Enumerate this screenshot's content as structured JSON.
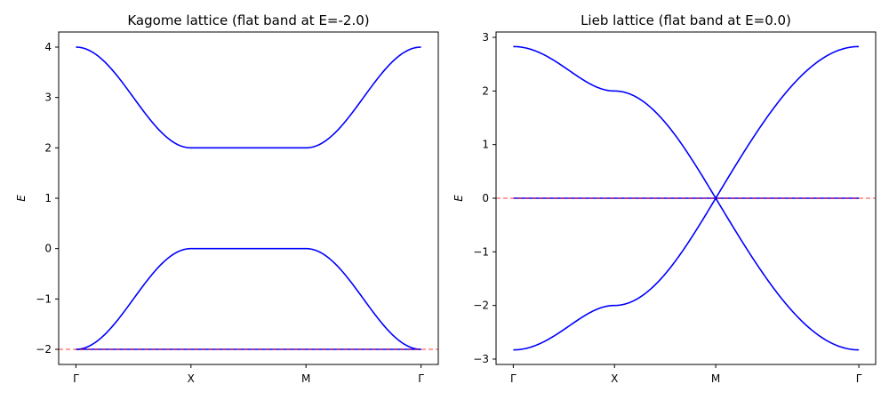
{
  "chart_data": [
    {
      "type": "line",
      "title": "Kagome lattice (flat band at E=-2.0)",
      "xlabel": "",
      "ylabel": "E",
      "x_tick_labels": [
        "Γ",
        "X",
        "M",
        "Γ"
      ],
      "x_ticks": [
        0,
        1,
        2,
        3
      ],
      "xlim": [
        -0.15,
        3.15
      ],
      "ylim": [
        -2.3,
        4.3
      ],
      "y_ticks": [
        -2,
        -1,
        0,
        1,
        2,
        3,
        4
      ],
      "y_tick_labels": [
        "−2",
        "−1",
        "0",
        "1",
        "2",
        "3",
        "4"
      ],
      "flat_band_energy": -2.0,
      "flat_band_line_color": "#ff0000",
      "band_color": "#0000ff",
      "series": [
        {
          "x": [
            0,
            0.25,
            0.5,
            0.75,
            1,
            1.25,
            1.5,
            1.75,
            2,
            2.25,
            2.5,
            2.75,
            3
          ],
          "values": [
            4.0,
            3.71,
            3.0,
            2.29,
            2.0,
            2.0,
            2.0,
            2.0,
            2.0,
            2.29,
            3.0,
            3.71,
            4.0
          ]
        },
        {
          "x": [
            0,
            0.25,
            0.5,
            0.75,
            1,
            1.25,
            1.5,
            1.75,
            2,
            2.25,
            2.5,
            2.75,
            3
          ],
          "values": [
            -2.0,
            -1.71,
            -1.0,
            -0.29,
            0.0,
            0.0,
            0.0,
            0.0,
            0.0,
            -0.29,
            -1.0,
            -1.71,
            -2.0
          ]
        },
        {
          "x": [
            0,
            3
          ],
          "values": [
            -2.0,
            -2.0
          ]
        }
      ]
    },
    {
      "type": "line",
      "title": "Lieb lattice (flat band at E=0.0)",
      "xlabel": "",
      "ylabel": "E",
      "x_tick_labels": [
        "Γ",
        "X",
        "M",
        "Γ"
      ],
      "x_ticks": [
        0,
        1,
        2,
        3.414
      ],
      "xlim": [
        -0.17,
        3.58
      ],
      "ylim": [
        -3.1,
        3.1
      ],
      "y_ticks": [
        -3,
        -2,
        -1,
        0,
        1,
        2,
        3
      ],
      "y_tick_labels": [
        "−3",
        "−2",
        "−1",
        "0",
        "1",
        "2",
        "3"
      ],
      "flat_band_energy": 0.0,
      "flat_band_line_color": "#ff0000",
      "band_color": "#0000ff",
      "series": [
        {
          "x": [
            0,
            0.25,
            0.5,
            0.75,
            1,
            1.25,
            1.5,
            1.75,
            2,
            2.354,
            2.707,
            3.061,
            3.414
          ],
          "values": [
            2.83,
            2.66,
            2.24,
            2.03,
            2.0,
            1.85,
            1.41,
            0.77,
            0.0,
            1.08,
            2.0,
            2.61,
            2.83
          ]
        },
        {
          "x": [
            0,
            0.25,
            0.5,
            0.75,
            1,
            1.25,
            1.5,
            1.75,
            2,
            2.354,
            2.707,
            3.061,
            3.414
          ],
          "values": [
            -2.83,
            -2.66,
            -2.24,
            -2.03,
            -2.0,
            -1.85,
            -1.41,
            -0.77,
            0.0,
            -1.08,
            -2.0,
            -2.61,
            -2.83
          ]
        },
        {
          "x": [
            0,
            3.414
          ],
          "values": [
            0.0,
            0.0
          ]
        }
      ]
    }
  ]
}
